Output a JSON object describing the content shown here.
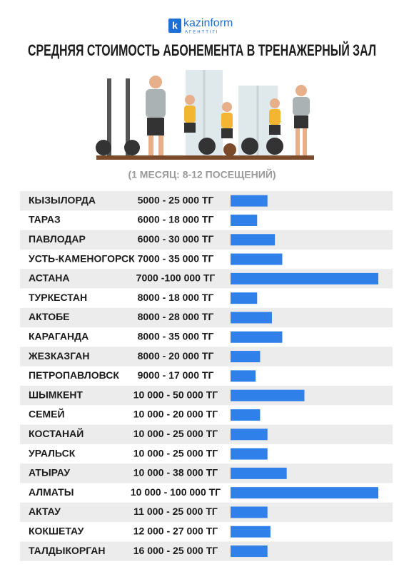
{
  "header": {
    "logo": "kazinform",
    "logo_sub": "АГЕНТТІГІ"
  },
  "chart_data": {
    "type": "bar",
    "orientation": "horizontal",
    "title": "СРЕДНЯЯ СТОИМОСТЬ АБОНЕМЕНТА В ТРЕНАЖЕРНЫЙ ЗАЛ",
    "subtitle": "(1 МЕСЯЦ: 8-12 ПОСЕЩЕНИЙ)",
    "categories": [
      "КЫЗЫЛОРДА",
      "ТАРАЗ",
      "ПАВЛОДАР",
      "УСТЬ-КАМЕНОГОРСК",
      "АСТАНА",
      "ТУРКЕСТАН",
      "АКТОБЕ",
      "КАРАГАНДА",
      "ЖЕЗКАЗГАН",
      "ПЕТРОПАВЛОВСК",
      "ШЫМКЕНТ",
      "СЕМЕЙ",
      "КОСТАНАЙ",
      "УРАЛЬСК",
      "АТЫРАУ",
      "АЛМАТЫ",
      "АКТАУ",
      "КОКШЕТАУ",
      "ТАЛДЫКОРГАН"
    ],
    "values": [
      25000,
      18000,
      30000,
      35000,
      100000,
      18000,
      28000,
      35000,
      20000,
      17000,
      50000,
      20000,
      25000,
      25000,
      38000,
      100000,
      25000,
      27000,
      25000
    ],
    "value_labels": [
      "5000 - 25 000 ТГ",
      "6000 - 18 000 ТГ",
      "6000 - 30 000 ТГ",
      "7000 - 35 000 ТГ",
      "7000 -100 000 ТГ",
      "8000 - 18 000 ТГ",
      "8000 - 28 000 ТГ",
      "8000 - 35 000 ТГ",
      "8000 - 20 000 ТГ",
      "9000 - 17 000 ТГ",
      "10 000 - 50 000 ТГ",
      "10 000 - 20 000 ТГ",
      "10 000 - 25 000 ТГ",
      "10 000 - 25 000 ТГ",
      "10 000 - 38 000 ТГ",
      "10 000 - 100 000 ТГ",
      "11 000 - 25 000 ТГ",
      "12 000 - 27 000 ТГ",
      "16 000 - 25 000 ТГ"
    ],
    "color": "#2f80e8",
    "xlim": [
      0,
      100000
    ]
  }
}
